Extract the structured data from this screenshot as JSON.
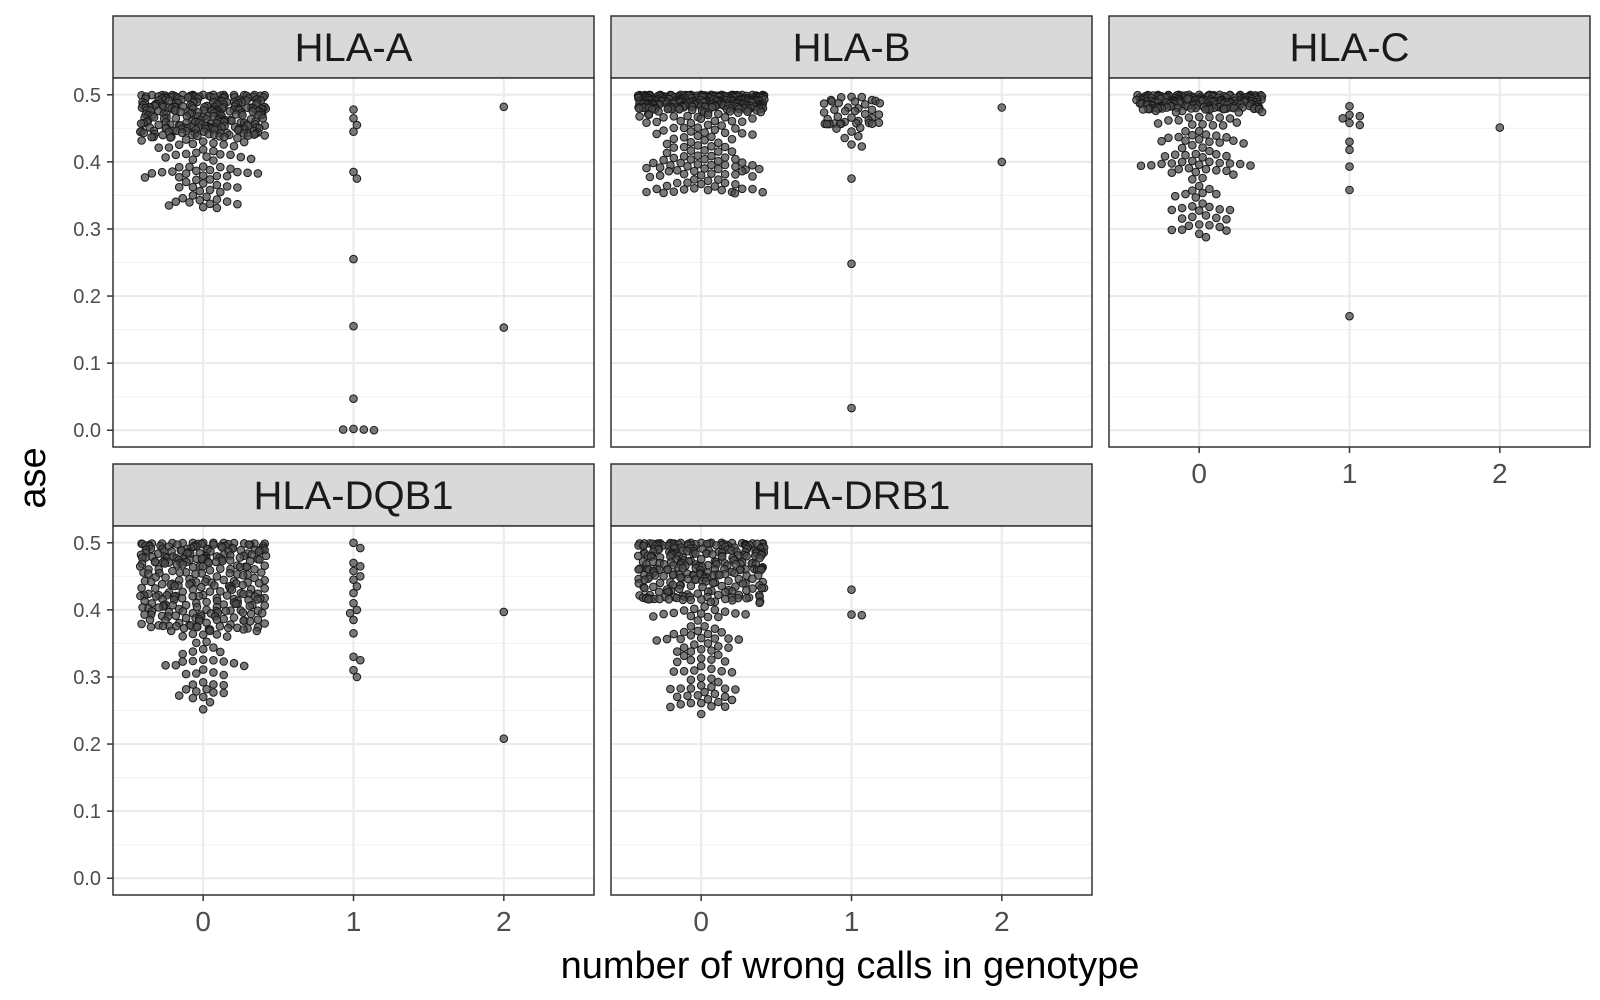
{
  "chart_data": {
    "type": "scatter",
    "style": "beeswarm",
    "xlabel": "number of wrong calls in genotype",
    "ylabel": "ase",
    "x_ticks": [
      0,
      1,
      2
    ],
    "y_ticks": [
      0.0,
      0.1,
      0.2,
      0.3,
      0.4,
      0.5
    ],
    "y_tick_labels": [
      "0.0",
      "0.1",
      "0.2",
      "0.3",
      "0.4",
      "0.5"
    ],
    "xlim": [
      -0.6,
      2.6
    ],
    "ylim": [
      -0.025,
      0.525
    ],
    "grid": true,
    "point_color": "#4d4d4d",
    "panels": [
      {
        "title": "HLA-A",
        "groups": [
          {
            "x": 0,
            "n": 330,
            "min": 0.33,
            "max": 0.5,
            "mode": 0.47,
            "spread": 0.42
          },
          {
            "x": 1,
            "values": [
              0.478,
              0.465,
              0.455,
              0.445,
              0.385,
              0.375,
              0.255,
              0.155,
              0.047,
              0.002,
              0.001,
              0.0,
              0.001
            ]
          },
          {
            "x": 2,
            "values": [
              0.482,
              0.153
            ]
          }
        ]
      },
      {
        "title": "HLA-B",
        "groups": [
          {
            "x": 0,
            "n": 420,
            "min": 0.345,
            "max": 0.5,
            "mode": 0.49,
            "spread": 0.42
          },
          {
            "x": 1,
            "n": 45,
            "min": 0.42,
            "max": 0.5,
            "mode": 0.48,
            "spread": 0.2,
            "values": [
              0.375,
              0.248,
              0.033
            ]
          },
          {
            "x": 2,
            "values": [
              0.481,
              0.4
            ]
          }
        ]
      },
      {
        "title": "HLA-C",
        "groups": [
          {
            "x": 0,
            "n": 300,
            "min": 0.285,
            "max": 0.5,
            "mode": 0.49,
            "spread": 0.42
          },
          {
            "x": 1,
            "values": [
              0.483,
              0.47,
              0.468,
              0.465,
              0.458,
              0.455,
              0.43,
              0.418,
              0.393,
              0.358,
              0.17
            ]
          },
          {
            "x": 2,
            "values": [
              0.451
            ]
          }
        ]
      },
      {
        "title": "HLA-DQB1",
        "groups": [
          {
            "x": 0,
            "n": 330,
            "min": 0.25,
            "max": 0.5,
            "mode": 0.44,
            "spread": 0.42
          },
          {
            "x": 1,
            "values": [
              0.5,
              0.492,
              0.47,
              0.465,
              0.458,
              0.45,
              0.445,
              0.435,
              0.425,
              0.41,
              0.4,
              0.395,
              0.385,
              0.365,
              0.33,
              0.325,
              0.31,
              0.3
            ]
          },
          {
            "x": 2,
            "values": [
              0.397,
              0.208
            ]
          }
        ]
      },
      {
        "title": "HLA-DRB1",
        "groups": [
          {
            "x": 0,
            "n": 360,
            "min": 0.24,
            "max": 0.5,
            "mode": 0.46,
            "spread": 0.42
          },
          {
            "x": 1,
            "values": [
              0.43,
              0.393,
              0.392
            ]
          }
        ]
      }
    ]
  }
}
